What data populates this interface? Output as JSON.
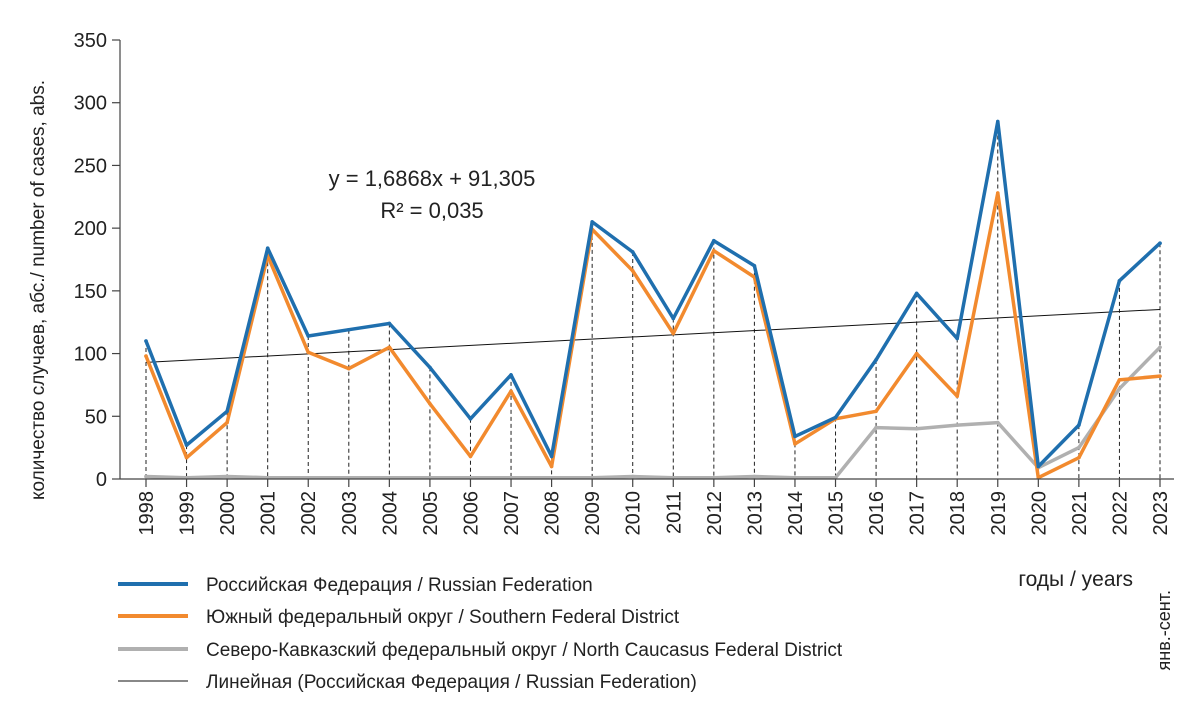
{
  "chart_data": {
    "type": "line",
    "ylabel": "количество случаев, абс./ number of cases, abs.",
    "xlabel": "годы / years",
    "ylim": [
      0,
      350
    ],
    "yticks": [
      0,
      50,
      100,
      150,
      200,
      250,
      300,
      350
    ],
    "categories": [
      "1998",
      "1999",
      "2000",
      "2001",
      "2002",
      "2003",
      "2004",
      "2005",
      "2006",
      "2007",
      "2008",
      "2009",
      "2010",
      "2011",
      "2012",
      "2013",
      "2014",
      "2015",
      "2016",
      "2017",
      "2018",
      "2019",
      "2020",
      "2021",
      "2022",
      "2023"
    ],
    "last_category_note": "янв.-сент.",
    "series": [
      {
        "name": "Российская Федерация / Russian Federation",
        "color": "#1f6fae",
        "values": [
          110,
          27,
          54,
          184,
          114,
          119,
          124,
          89,
          48,
          83,
          18,
          205,
          181,
          128,
          190,
          170,
          34,
          49,
          95,
          148,
          112,
          285,
          10,
          43,
          158,
          188
        ]
      },
      {
        "name": "Южный федеральный округ / Southern Federal District",
        "color": "#f28a2e",
        "values": [
          98,
          17,
          45,
          178,
          101,
          88,
          105,
          60,
          18,
          70,
          10,
          199,
          166,
          116,
          182,
          161,
          28,
          48,
          54,
          100,
          66,
          228,
          1,
          17,
          79,
          82
        ]
      },
      {
        "name": "Северо-Кавказский федеральный округ / North Caucasus Federal District",
        "color": "#b0b0b0",
        "values": [
          2,
          1,
          2,
          1,
          1,
          1,
          1,
          1,
          1,
          1,
          1,
          1,
          2,
          1,
          1,
          2,
          1,
          1,
          41,
          40,
          43,
          45,
          9,
          25,
          72,
          105
        ]
      }
    ],
    "trendline": {
      "name": "Линейная (Российская Федерация / Russian Federation)",
      "color": "#111111",
      "equation": "y = 1,6868x + 91,305",
      "r2": "R² = 0,035",
      "slope": 1.6868,
      "intercept": 91.305
    }
  }
}
